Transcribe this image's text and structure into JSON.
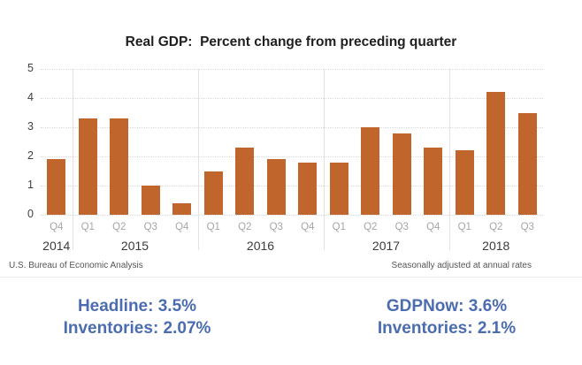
{
  "title": "Real GDP:  Percent change from preceding quarter",
  "footer": {
    "left": "U.S. Bureau of Economic Analysis",
    "right": "Seasonally adjusted at annual rates"
  },
  "annotations": {
    "left": {
      "line1": "Headline: 3.5%",
      "line2": "Inventories: 2.07%"
    },
    "right": {
      "line1": "GDPNow: 3.6%",
      "line2": "Inventories: 2.1%"
    }
  },
  "colors": {
    "bar": "#c0652b",
    "annotation_blue": "#4b6cb0",
    "gridline": "#d9d9d9",
    "quarter_label": "#a6a6a6",
    "year_label": "#3b3b3b"
  },
  "chart_data": {
    "type": "bar",
    "title": "Real GDP:  Percent change from preceding quarter",
    "xlabel": "",
    "ylabel": "",
    "ylim": [
      0,
      5
    ],
    "yticks": [
      0,
      1,
      2,
      3,
      4,
      5
    ],
    "grid": "horizontal-dotted",
    "legend": "none",
    "categories": [
      "2014 Q4",
      "2015 Q1",
      "2015 Q2",
      "2015 Q3",
      "2015 Q4",
      "2016 Q1",
      "2016 Q2",
      "2016 Q3",
      "2016 Q4",
      "2017 Q1",
      "2017 Q2",
      "2017 Q3",
      "2017 Q4",
      "2018 Q1",
      "2018 Q2",
      "2018 Q3"
    ],
    "values": [
      1.9,
      3.3,
      3.3,
      1.0,
      0.4,
      1.5,
      2.3,
      1.9,
      1.8,
      1.8,
      3.0,
      2.8,
      2.3,
      2.2,
      4.2,
      3.5
    ],
    "groups": [
      {
        "year": "2014",
        "quarters": [
          "Q4"
        ],
        "values": [
          1.9
        ]
      },
      {
        "year": "2015",
        "quarters": [
          "Q1",
          "Q2",
          "Q3",
          "Q4"
        ],
        "values": [
          3.3,
          3.3,
          1.0,
          0.4
        ]
      },
      {
        "year": "2016",
        "quarters": [
          "Q1",
          "Q2",
          "Q3",
          "Q4"
        ],
        "values": [
          1.5,
          2.3,
          1.9,
          1.8
        ]
      },
      {
        "year": "2017",
        "quarters": [
          "Q1",
          "Q2",
          "Q3",
          "Q4"
        ],
        "values": [
          1.8,
          3.0,
          2.8,
          2.3
        ]
      },
      {
        "year": "2018",
        "quarters": [
          "Q1",
          "Q2",
          "Q3"
        ],
        "values": [
          2.2,
          4.2,
          3.5
        ]
      }
    ]
  }
}
